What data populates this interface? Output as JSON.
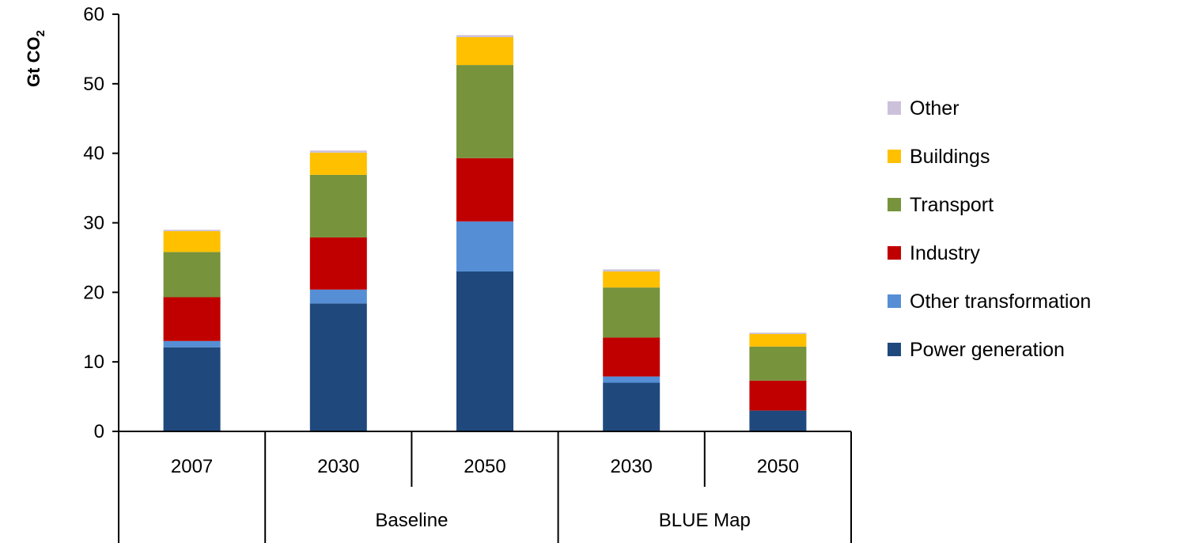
{
  "chart_data": {
    "type": "bar",
    "stacked": true,
    "ylabel": "Gt CO",
    "ylabel_subscript": "2",
    "ylim": [
      0,
      60
    ],
    "yticks": [
      0,
      10,
      20,
      30,
      40,
      50,
      60
    ],
    "categories": [
      "2007",
      "2030",
      "2050",
      "2030",
      "2050"
    ],
    "category_groups": [
      {
        "label": "",
        "span": 1
      },
      {
        "label": "Baseline",
        "span": 2
      },
      {
        "label": "BLUE Map",
        "span": 2
      }
    ],
    "series": [
      {
        "name": "Power generation",
        "color": "#1F497D",
        "values": [
          12.1,
          18.4,
          23.0,
          7.0,
          3.0
        ]
      },
      {
        "name": "Other transformation",
        "color": "#558ED5",
        "values": [
          0.9,
          2.0,
          7.2,
          0.9,
          0.0
        ]
      },
      {
        "name": "Industry",
        "color": "#C00000",
        "values": [
          6.3,
          7.5,
          9.1,
          5.6,
          4.3
        ]
      },
      {
        "name": "Transport",
        "color": "#77933C",
        "values": [
          6.5,
          9.0,
          13.4,
          7.2,
          4.9
        ]
      },
      {
        "name": "Buildings",
        "color": "#FFC000",
        "values": [
          3.0,
          3.2,
          4.0,
          2.3,
          1.8
        ]
      },
      {
        "name": "Other",
        "color": "#CCC1DA",
        "values": [
          0.2,
          0.3,
          0.3,
          0.3,
          0.2
        ]
      }
    ],
    "legend_position": "right",
    "grid": false
  }
}
